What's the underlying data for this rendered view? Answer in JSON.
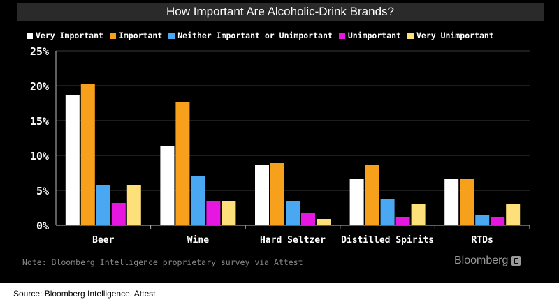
{
  "title": "How Important Are Alcoholic-Drink Brands?",
  "note": "Note: Bloomberg Intelligence proprietary survey via Attest",
  "brand": "Bloomberg",
  "source": "Source: Bloomberg Intelligence, Attest",
  "colors": {
    "background": "#000000",
    "title_bar": "#2a2a2a",
    "gridline": "#3a3a3a"
  },
  "chart_data": {
    "type": "bar",
    "categories": [
      "Beer",
      "Wine",
      "Hard Seltzer",
      "Distilled Spirits",
      "RTDs"
    ],
    "series": [
      {
        "name": "Very Important",
        "color": "#ffffff",
        "values": [
          18.7,
          11.4,
          8.7,
          6.7,
          6.7
        ]
      },
      {
        "name": "Important",
        "color": "#f7a01c",
        "values": [
          20.3,
          17.7,
          9.0,
          8.7,
          6.7
        ]
      },
      {
        "name": "Neither Important or Unimportant",
        "color": "#4aa8f2",
        "values": [
          5.8,
          7.0,
          3.5,
          3.8,
          1.5
        ]
      },
      {
        "name": "Unimportant",
        "color": "#e617e0",
        "values": [
          3.2,
          3.5,
          1.8,
          1.2,
          1.2
        ]
      },
      {
        "name": "Very Unimportant",
        "color": "#fde07a",
        "values": [
          5.8,
          3.5,
          0.9,
          3.0,
          3.0
        ]
      }
    ],
    "yticks": [
      "0%",
      "5%",
      "10%",
      "15%",
      "20%",
      "25%"
    ],
    "ylim": [
      0,
      25
    ],
    "grid": true,
    "legend_position": "top"
  }
}
